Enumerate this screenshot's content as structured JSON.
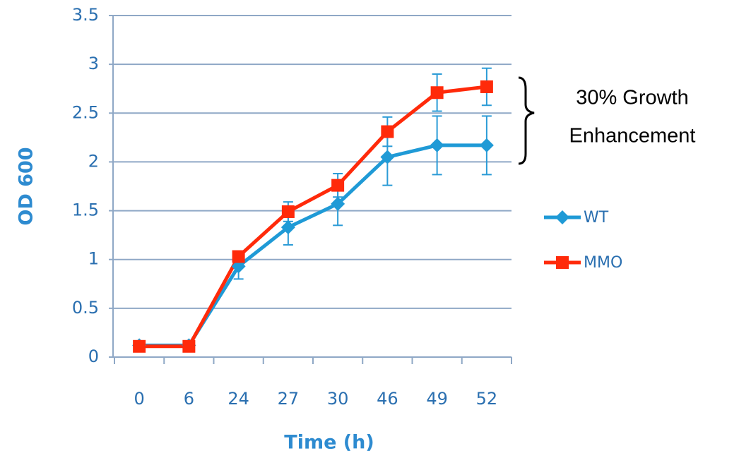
{
  "chart_data": {
    "type": "line",
    "x_label": "Time (h)",
    "y_label": "OD 600",
    "categories": [
      "0",
      "6",
      "24",
      "27",
      "30",
      "46",
      "49",
      "52"
    ],
    "series": [
      {
        "name": "WT",
        "color": "#1f9ad6",
        "marker": "diamond",
        "values": [
          0.12,
          0.12,
          0.93,
          1.33,
          1.57,
          2.05,
          2.17,
          2.17
        ],
        "errors": [
          0,
          0,
          0.13,
          0.18,
          0.22,
          0.29,
          0.3,
          0.3
        ]
      },
      {
        "name": "MMO",
        "color": "#ff2a0a",
        "marker": "square",
        "values": [
          0.11,
          0.11,
          1.03,
          1.49,
          1.76,
          2.31,
          2.71,
          2.77
        ],
        "errors": [
          0,
          0,
          0.05,
          0.1,
          0.12,
          0.15,
          0.19,
          0.19
        ]
      }
    ],
    "error_color": "#2b9bd6",
    "ylim": [
      0,
      3.5
    ],
    "yticks": [
      0,
      0.5,
      1,
      1.5,
      2,
      2.5,
      3,
      3.5
    ],
    "grid": true,
    "legend": "right",
    "annotation": [
      "30% Growth",
      "Enhancement"
    ]
  }
}
